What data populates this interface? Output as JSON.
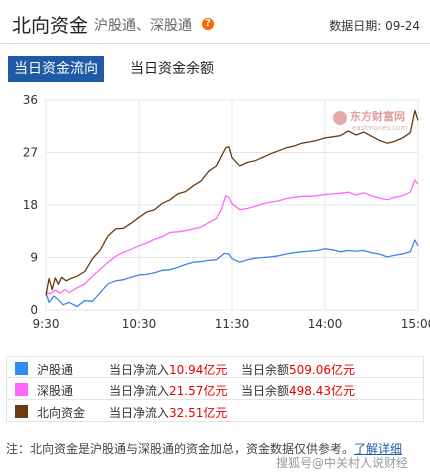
{
  "header": {
    "title": "北向资金",
    "subtitle": "沪股通、深股通",
    "help": "?",
    "date_label": "数据日期: 09-24"
  },
  "tabs": [
    {
      "label": "当日资金流向",
      "active": true
    },
    {
      "label": "当日资金余额",
      "active": false
    }
  ],
  "brand": {
    "name": "东方财富网",
    "domain": "eastmoney.com"
  },
  "chart_data": {
    "type": "line",
    "ylim": [
      0,
      36
    ],
    "yticks": [
      0,
      9,
      18,
      27,
      36
    ],
    "xlim": [
      0,
      240
    ],
    "xticks": [
      {
        "label": "9:30",
        "t": 0
      },
      {
        "label": "10:30",
        "t": 60
      },
      {
        "label": "11:30",
        "t": 120
      },
      {
        "label": "14:00",
        "t": 180
      },
      {
        "label": "15:00",
        "t": 240
      }
    ],
    "grid": true,
    "series": [
      {
        "name": "沪股通",
        "color": "#3a86e8",
        "points": [
          [
            0,
            3
          ],
          [
            2,
            1.3
          ],
          [
            5,
            2.4
          ],
          [
            8,
            1.8
          ],
          [
            11,
            0.9
          ],
          [
            15,
            1.3
          ],
          [
            20,
            0.6
          ],
          [
            25,
            1.6
          ],
          [
            30,
            1.5
          ],
          [
            35,
            3
          ],
          [
            40,
            4.5
          ],
          [
            45,
            5
          ],
          [
            50,
            5.2
          ],
          [
            55,
            5.6
          ],
          [
            60,
            6
          ],
          [
            65,
            6.1
          ],
          [
            70,
            6.4
          ],
          [
            75,
            6.8
          ],
          [
            80,
            6.9
          ],
          [
            85,
            7.3
          ],
          [
            90,
            7.8
          ],
          [
            95,
            8.2
          ],
          [
            100,
            8.3
          ],
          [
            105,
            8.5
          ],
          [
            110,
            8.6
          ],
          [
            115,
            9.7
          ],
          [
            118,
            9.6
          ],
          [
            120,
            8.8
          ],
          [
            125,
            8.2
          ],
          [
            130,
            8.6
          ],
          [
            135,
            8.9
          ],
          [
            140,
            9
          ],
          [
            145,
            9.1
          ],
          [
            150,
            9.3
          ],
          [
            155,
            9.6
          ],
          [
            160,
            9.8
          ],
          [
            165,
            10
          ],
          [
            170,
            10.1
          ],
          [
            175,
            10.2
          ],
          [
            180,
            10.5
          ],
          [
            185,
            10.3
          ],
          [
            190,
            10
          ],
          [
            195,
            10.2
          ],
          [
            200,
            10.1
          ],
          [
            205,
            10.2
          ],
          [
            210,
            9.8
          ],
          [
            215,
            9.6
          ],
          [
            220,
            9.1
          ],
          [
            225,
            9.4
          ],
          [
            230,
            9.6
          ],
          [
            235,
            10
          ],
          [
            238,
            12
          ],
          [
            240,
            11
          ]
        ]
      },
      {
        "name": "深股通",
        "color": "#ff66ff",
        "points": [
          [
            0,
            3
          ],
          [
            3,
            2.8
          ],
          [
            6,
            3.4
          ],
          [
            9,
            2.9
          ],
          [
            12,
            3.5
          ],
          [
            15,
            3
          ],
          [
            20,
            3.8
          ],
          [
            25,
            4.5
          ],
          [
            30,
            5.8
          ],
          [
            35,
            7
          ],
          [
            40,
            8.2
          ],
          [
            45,
            9.2
          ],
          [
            50,
            9.9
          ],
          [
            55,
            10.4
          ],
          [
            60,
            11
          ],
          [
            65,
            11.5
          ],
          [
            70,
            12.1
          ],
          [
            75,
            12.6
          ],
          [
            80,
            13.3
          ],
          [
            85,
            13.4
          ],
          [
            90,
            13.6
          ],
          [
            95,
            13.9
          ],
          [
            100,
            14.2
          ],
          [
            105,
            15
          ],
          [
            110,
            15.7
          ],
          [
            113,
            17.2
          ],
          [
            116,
            19.6
          ],
          [
            118,
            19.3
          ],
          [
            120,
            18.2
          ],
          [
            125,
            17.2
          ],
          [
            130,
            17.4
          ],
          [
            135,
            17.8
          ],
          [
            140,
            18.2
          ],
          [
            145,
            18.5
          ],
          [
            150,
            18.7
          ],
          [
            155,
            19.1
          ],
          [
            160,
            19.3
          ],
          [
            165,
            19.5
          ],
          [
            170,
            19.5
          ],
          [
            175,
            19.6
          ],
          [
            180,
            19.8
          ],
          [
            185,
            19.9
          ],
          [
            190,
            20
          ],
          [
            195,
            20.2
          ],
          [
            200,
            19.7
          ],
          [
            205,
            20.1
          ],
          [
            210,
            19.6
          ],
          [
            215,
            19.2
          ],
          [
            220,
            18.9
          ],
          [
            225,
            19.3
          ],
          [
            230,
            19.6
          ],
          [
            235,
            20.2
          ],
          [
            238,
            22.3
          ],
          [
            240,
            21.57
          ]
        ]
      },
      {
        "name": "北向资金",
        "color": "#6b3a0e",
        "points": [
          [
            0,
            2.5
          ],
          [
            2,
            5.4
          ],
          [
            4,
            3.5
          ],
          [
            6,
            5.5
          ],
          [
            8,
            4.4
          ],
          [
            10,
            5.6
          ],
          [
            13,
            5
          ],
          [
            16,
            5.4
          ],
          [
            20,
            5.8
          ],
          [
            25,
            6.6
          ],
          [
            30,
            8.8
          ],
          [
            35,
            10.3
          ],
          [
            40,
            12.7
          ],
          [
            45,
            13.9
          ],
          [
            50,
            14
          ],
          [
            55,
            14.9
          ],
          [
            60,
            15.9
          ],
          [
            65,
            16.8
          ],
          [
            70,
            17.2
          ],
          [
            75,
            18.3
          ],
          [
            80,
            18.9
          ],
          [
            85,
            19.9
          ],
          [
            90,
            20.3
          ],
          [
            95,
            21.3
          ],
          [
            100,
            22.1
          ],
          [
            105,
            23.8
          ],
          [
            110,
            24.7
          ],
          [
            113,
            26.3
          ],
          [
            116,
            27.8
          ],
          [
            118,
            28
          ],
          [
            120,
            26.1
          ],
          [
            125,
            24.7
          ],
          [
            130,
            25.3
          ],
          [
            135,
            25.6
          ],
          [
            140,
            26.2
          ],
          [
            145,
            26.8
          ],
          [
            150,
            27.3
          ],
          [
            155,
            27.8
          ],
          [
            160,
            28.1
          ],
          [
            165,
            28.6
          ],
          [
            170,
            28.8
          ],
          [
            175,
            29.1
          ],
          [
            180,
            29.5
          ],
          [
            185,
            29.7
          ],
          [
            190,
            29.9
          ],
          [
            195,
            30.7
          ],
          [
            200,
            30
          ],
          [
            205,
            30.5
          ],
          [
            210,
            29.8
          ],
          [
            215,
            29.1
          ],
          [
            220,
            28.6
          ],
          [
            225,
            28.9
          ],
          [
            230,
            29.5
          ],
          [
            235,
            30.4
          ],
          [
            238,
            34.2
          ],
          [
            240,
            32.51
          ]
        ]
      }
    ]
  },
  "legend": [
    {
      "name": "沪股通",
      "color": "#2e8ef0",
      "inflow_label": "当日净流入",
      "inflow_value": "10.94亿元",
      "balance_label": "当日余额",
      "balance_value": "509.06亿元"
    },
    {
      "name": "深股通",
      "color": "#ff66ff",
      "inflow_label": "当日净流入",
      "inflow_value": "21.57亿元",
      "balance_label": "当日余额",
      "balance_value": "498.43亿元"
    },
    {
      "name": "北向资金",
      "color": "#6b3a0e",
      "inflow_label": "当日净流入",
      "inflow_value": "32.51亿元"
    }
  ],
  "footnote": {
    "text": "注：北向资金是沪股通与深股通的资金加总，资金数据仅供参考。",
    "link": "了解详细"
  },
  "watermark": "搜狐号@中关村人说财经"
}
